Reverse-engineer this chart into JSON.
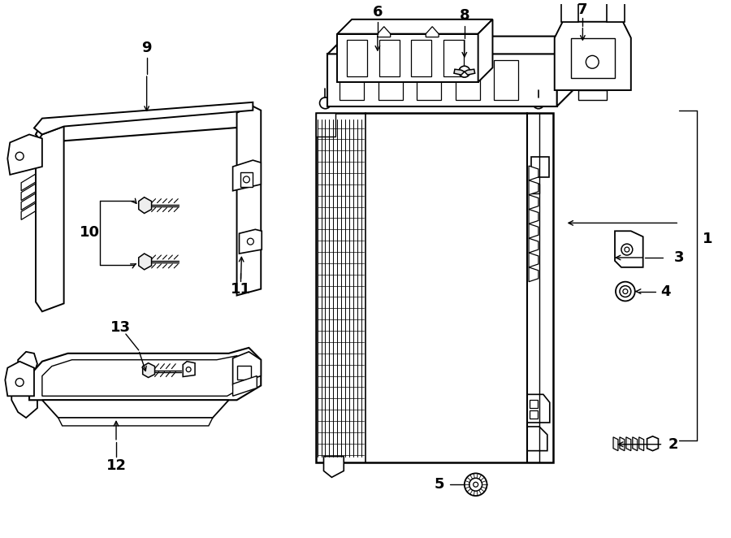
{
  "background_color": "#ffffff",
  "line_color": "#000000",
  "figsize": [
    9.0,
    6.62
  ],
  "dpi": 100
}
